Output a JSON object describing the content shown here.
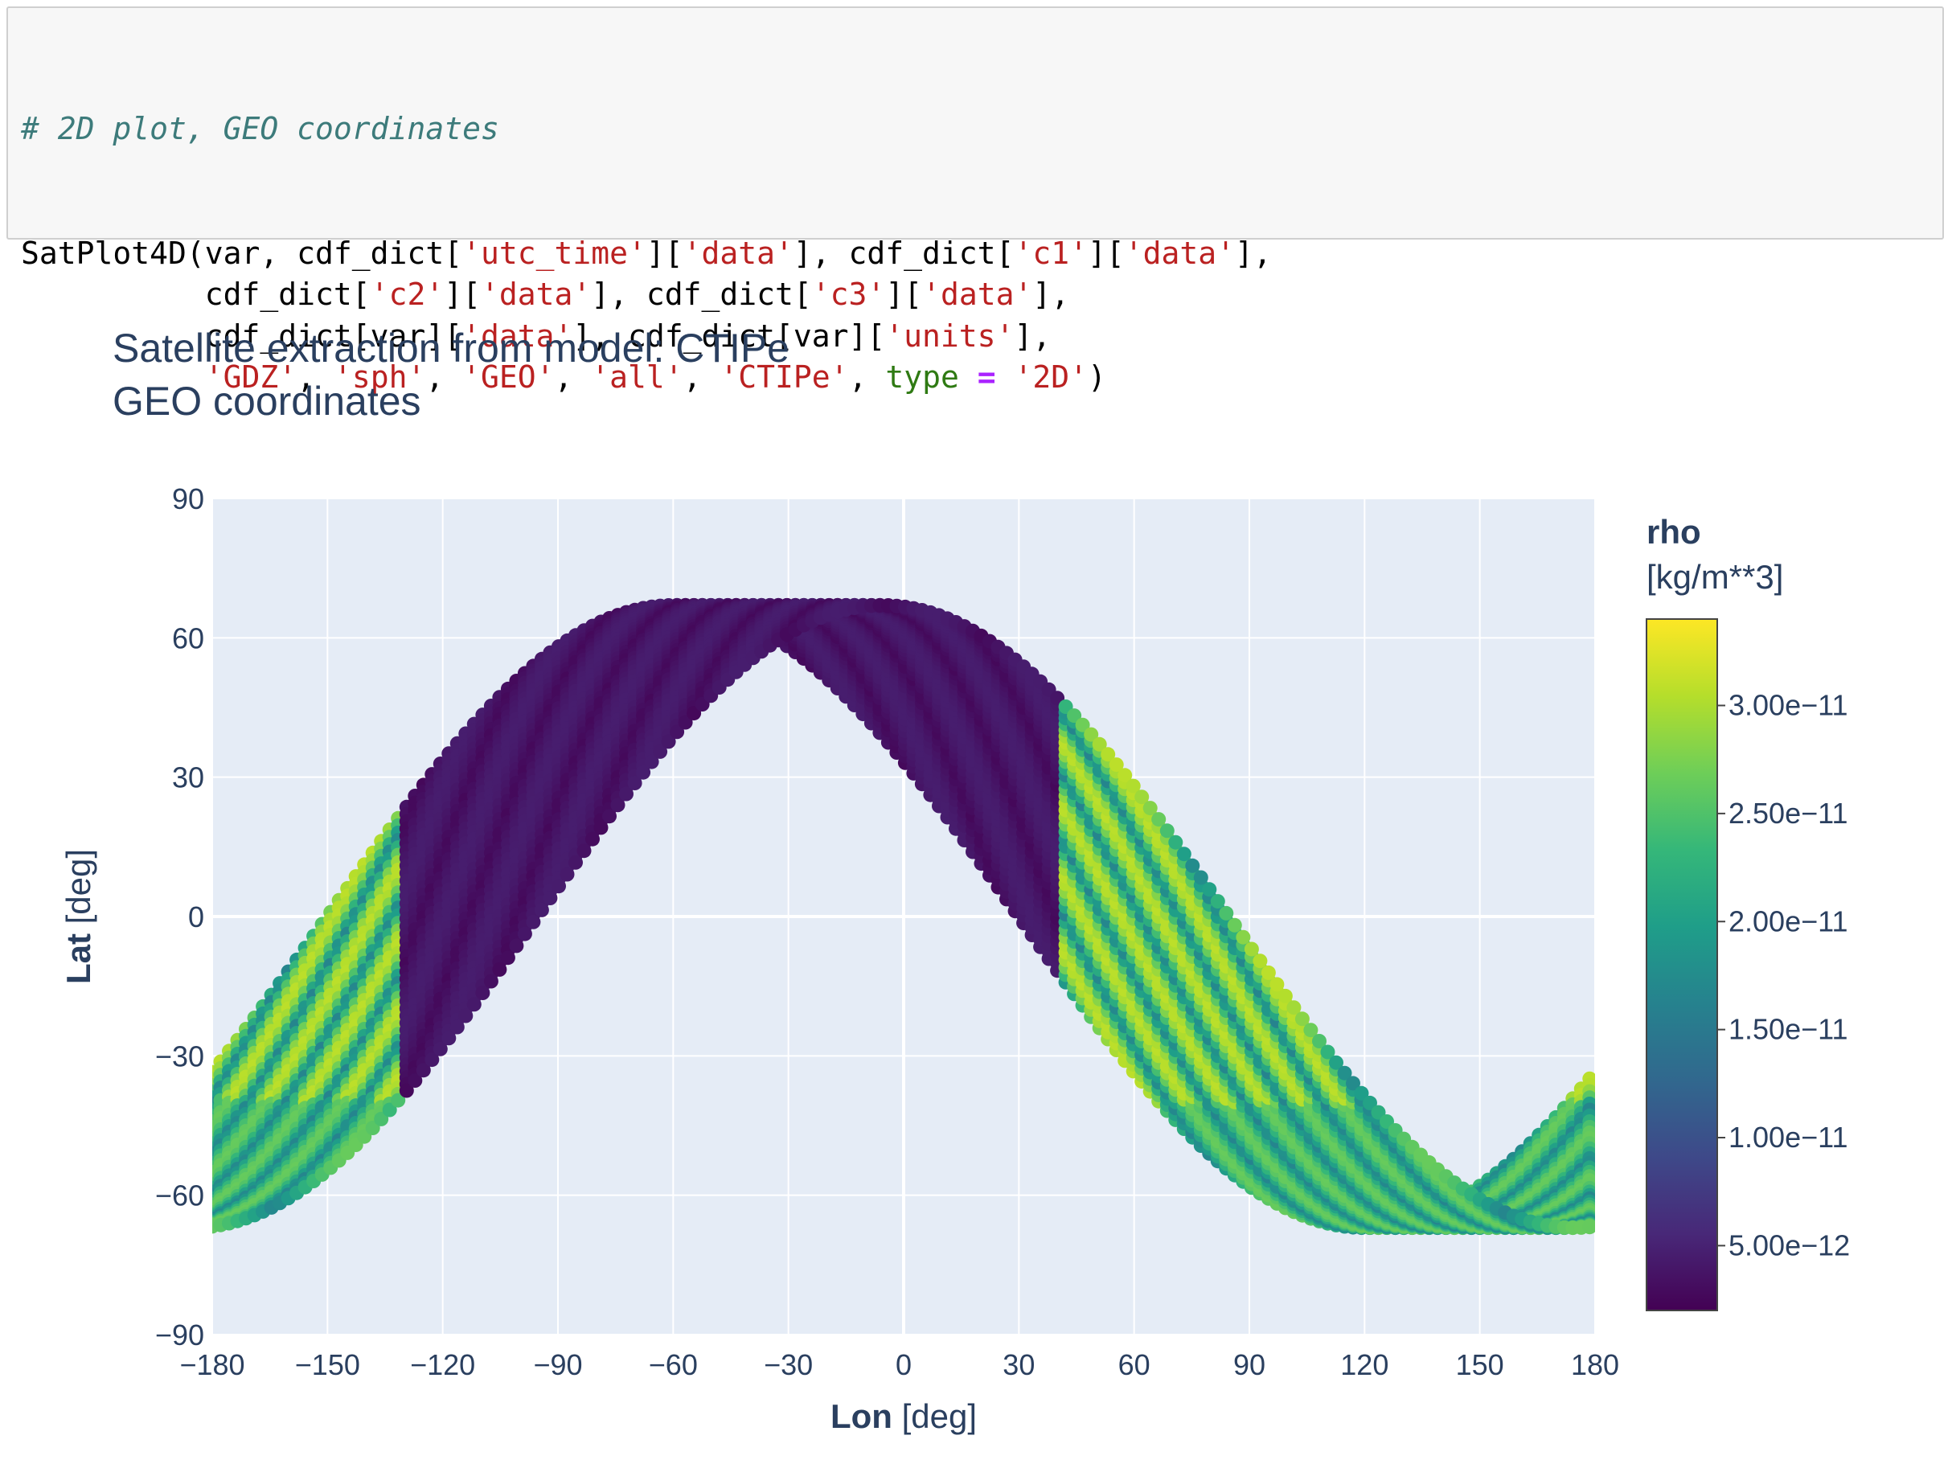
{
  "code": {
    "comment": "# 2D plot, GEO coordinates",
    "lines": [
      [
        [
          "t",
          "SatPlot4D(var, cdf_dict["
        ],
        [
          "s",
          "'utc_time'"
        ],
        [
          "t",
          "]["
        ],
        [
          "s",
          "'data'"
        ],
        [
          "t",
          "], cdf_dict["
        ],
        [
          "s",
          "'c1'"
        ],
        [
          "t",
          "]["
        ],
        [
          "s",
          "'data'"
        ],
        [
          "t",
          "],"
        ]
      ],
      [
        [
          "t",
          "          cdf_dict["
        ],
        [
          "s",
          "'c2'"
        ],
        [
          "t",
          "]["
        ],
        [
          "s",
          "'data'"
        ],
        [
          "t",
          "], cdf_dict["
        ],
        [
          "s",
          "'c3'"
        ],
        [
          "t",
          "]["
        ],
        [
          "s",
          "'data'"
        ],
        [
          "t",
          "],"
        ]
      ],
      [
        [
          "t",
          "          cdf_dict[var]["
        ],
        [
          "s",
          "'data'"
        ],
        [
          "t",
          "], cdf_dict[var]["
        ],
        [
          "s",
          "'units'"
        ],
        [
          "t",
          "],"
        ]
      ],
      [
        [
          "t",
          "          "
        ],
        [
          "s",
          "'GDZ'"
        ],
        [
          "t",
          ", "
        ],
        [
          "s",
          "'sph'"
        ],
        [
          "t",
          ", "
        ],
        [
          "s",
          "'GEO'"
        ],
        [
          "t",
          ", "
        ],
        [
          "s",
          "'all'"
        ],
        [
          "t",
          ", "
        ],
        [
          "s",
          "'CTIPe'"
        ],
        [
          "t",
          ", "
        ],
        [
          "k",
          "type"
        ],
        [
          "t",
          " "
        ],
        [
          "o",
          "="
        ],
        [
          "t",
          " "
        ],
        [
          "s",
          "'2D'"
        ],
        [
          "t",
          ")"
        ]
      ]
    ]
  },
  "chart_data": {
    "type": "scatter",
    "title": "Satellite extraction from model: CTIPe",
    "subtitle": "GEO coordinates",
    "xlabel": "Lon",
    "xlabel_unit": "[deg]",
    "ylabel": "Lat",
    "ylabel_unit": "[deg]",
    "xlim": [
      -180,
      180
    ],
    "ylim": [
      -90,
      90
    ],
    "xticks": [
      -180,
      -150,
      -120,
      -90,
      -60,
      -30,
      0,
      30,
      60,
      90,
      120,
      150,
      180
    ],
    "yticks": [
      -90,
      -60,
      -30,
      0,
      30,
      60,
      90
    ],
    "xtick_labels": [
      "−180",
      "−150",
      "−120",
      "−90",
      "−60",
      "−30",
      "0",
      "30",
      "60",
      "90",
      "120",
      "150",
      "180"
    ],
    "ytick_labels": [
      "−90",
      "−60",
      "−30",
      "0",
      "30",
      "60",
      "90"
    ],
    "grid": true,
    "orbit": {
      "max_lat": 67,
      "upper_band_lon_range": [
        -180,
        -60
      ],
      "ascending_node_lon_range": [
        -120,
        60
      ],
      "lower_band_lon_range": [
        -60,
        120
      ]
    },
    "colorbar": {
      "title": "rho",
      "unit": "[kg/m**3]",
      "colorscale": "Viridis",
      "range": [
        2e-12,
        3.4e-11
      ],
      "ticks": [
        5e-12,
        1e-11,
        1.5e-11,
        2e-11,
        2.5e-11,
        3e-11
      ],
      "tick_labels": [
        "5.00e−12",
        "1.00e−11",
        "1.50e−11",
        "2.00e−11",
        "2.50e−11",
        "3.00e−11"
      ]
    },
    "colors": {
      "plot_bg": "#e5ecf6",
      "grid": "#ffffff",
      "text": "#2a3f5f",
      "viridis": [
        "#440154",
        "#482878",
        "#3e4989",
        "#31688e",
        "#26828e",
        "#1f9e89",
        "#35b779",
        "#6ece58",
        "#b5de2b",
        "#fde725"
      ]
    }
  }
}
